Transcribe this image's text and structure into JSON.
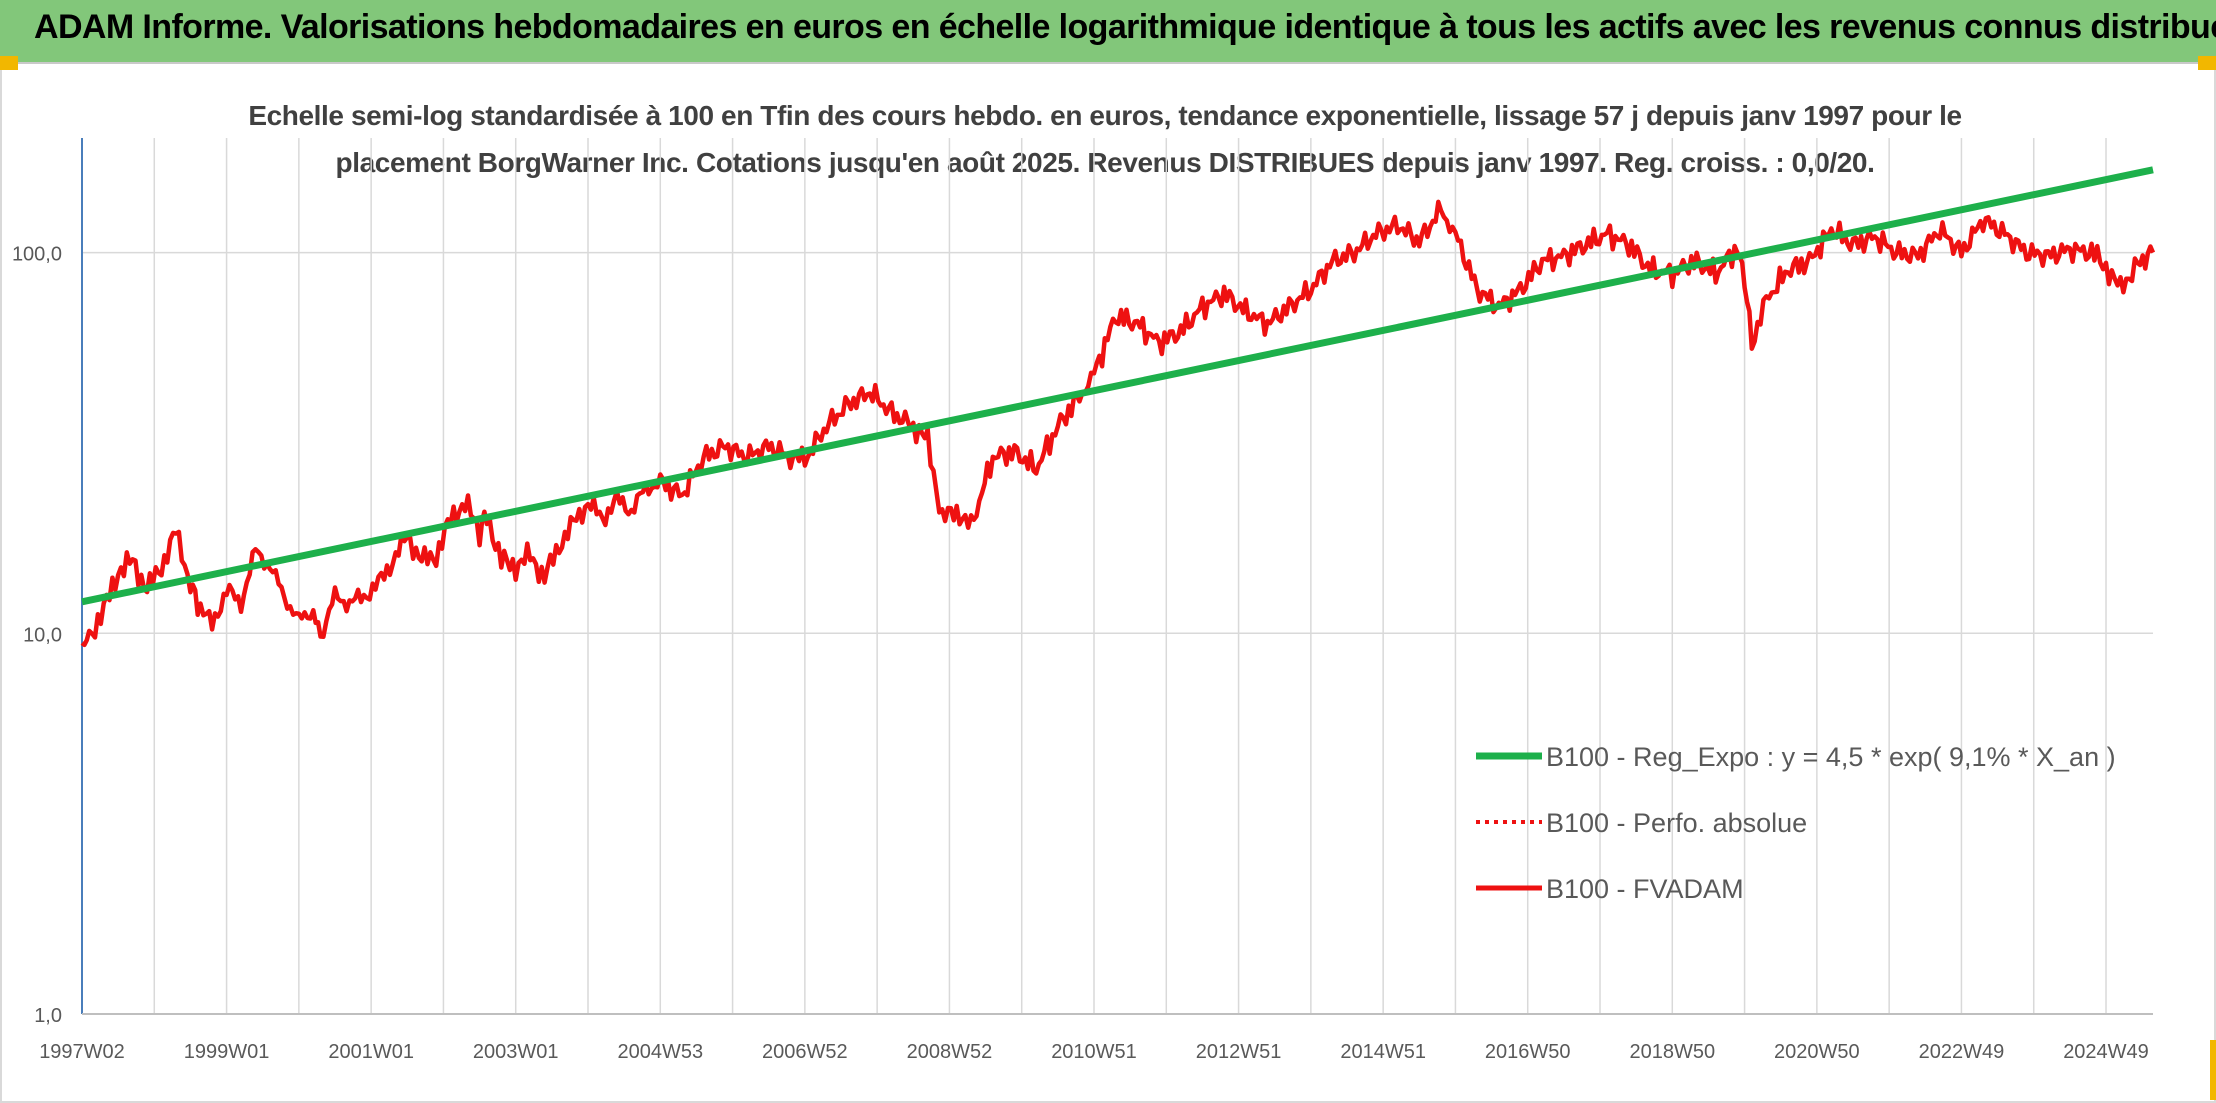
{
  "header": {
    "title": "ADAM Informe. Valorisations hebdomadaires en euros en échelle logarithmique identique à tous les actifs avec les revenus connus distribués"
  },
  "colors": {
    "header_bg": "#82c77a",
    "trend": "#1db04b",
    "fvadam": "#ee1111",
    "perfo": "#ee1111",
    "grid": "#d9d9d9",
    "axis": "#4a7ebb"
  },
  "chart_data": {
    "type": "line",
    "title_line1": "Echelle semi-log standardisée à 100 en Tfin des cours hebdo. en euros, tendance exponentielle, lissage 57 j depuis janv 1997 pour le",
    "title_line2": "placement BorgWarner Inc. Cotations jusqu'en août 2025. Revenus DISTRIBUES depuis janv 1997. Reg. croiss. : 0,0/20.",
    "y_scale": "log",
    "ylim": [
      1,
      200
    ],
    "y_ticks": [
      1,
      10,
      100
    ],
    "y_tick_labels": [
      "1,0",
      "10,0",
      "100,0"
    ],
    "xlim": [
      1997.0,
      2025.65
    ],
    "x_tick_labels": [
      "1997W02",
      "1999W01",
      "2001W01",
      "2003W01",
      "2004W53",
      "2006W52",
      "2008W52",
      "2010W51",
      "2012W51",
      "2014W51",
      "2016W50",
      "2018W50",
      "2020W50",
      "2022W49",
      "2024W49"
    ],
    "x_tick_positions": [
      1997.0,
      1999.0,
      2001.0,
      2003.0,
      2005.0,
      2007.0,
      2009.0,
      2011.0,
      2013.0,
      2015.0,
      2017.0,
      2019.0,
      2021.0,
      2023.0,
      2025.0
    ],
    "grid": true,
    "legend_position": "bottom-right",
    "series": [
      {
        "name": "B100 - Reg_Expo : y = 4,5 * exp( 9,1% *  X_an )",
        "style": "solid-thick",
        "color": "#1db04b",
        "x": [
          1997.0,
          2025.65
        ],
        "y": [
          12.1,
          165
        ]
      },
      {
        "name": "B100 - Perfo. absolue",
        "style": "dotted",
        "color": "#ee1111",
        "x": [],
        "y": []
      },
      {
        "name": "B100 - FVADAM",
        "style": "solid",
        "color": "#ee1111",
        "x": [
          1997.0,
          1997.1,
          1997.3,
          1997.5,
          1997.7,
          1997.9,
          1998.1,
          1998.3,
          1998.5,
          1998.6,
          1998.8,
          1999.0,
          1999.2,
          1999.4,
          1999.6,
          1999.8,
          2000.0,
          2000.2,
          2000.3,
          2000.5,
          2000.7,
          2000.9,
          2001.1,
          2001.3,
          2001.5,
          2001.7,
          2001.9,
          2002.1,
          2002.3,
          2002.5,
          2002.6,
          2002.8,
          2003.0,
          2003.2,
          2003.4,
          2003.6,
          2003.8,
          2004.0,
          2004.2,
          2004.4,
          2004.6,
          2004.8,
          2005.0,
          2005.3,
          2005.6,
          2005.9,
          2006.2,
          2006.5,
          2006.8,
          2007.0,
          2007.3,
          2007.6,
          2007.9,
          2008.2,
          2008.5,
          2008.7,
          2008.9,
          2009.1,
          2009.3,
          2009.6,
          2009.9,
          2010.2,
          2010.5,
          2010.8,
          2011.0,
          2011.3,
          2011.6,
          2011.9,
          2012.2,
          2012.5,
          2012.8,
          2013.1,
          2013.4,
          2013.7,
          2014.0,
          2014.3,
          2014.6,
          2014.9,
          2015.2,
          2015.5,
          2015.8,
          2016.0,
          2016.3,
          2016.6,
          2016.9,
          2017.2,
          2017.5,
          2017.8,
          2018.1,
          2018.4,
          2018.7,
          2019.0,
          2019.3,
          2019.6,
          2019.9,
          2020.0,
          2020.1,
          2020.3,
          2020.6,
          2020.9,
          2021.2,
          2021.5,
          2021.8,
          2022.1,
          2022.4,
          2022.7,
          2023.0,
          2023.3,
          2023.6,
          2023.9,
          2024.2,
          2024.5,
          2024.8,
          2025.0,
          2025.2,
          2025.4,
          2025.65
        ],
        "y": [
          9.3,
          9.8,
          11.5,
          14.5,
          15.5,
          13.0,
          15.0,
          18.5,
          13.5,
          12.0,
          10.5,
          13.0,
          12.0,
          16.5,
          15.0,
          12.5,
          10.8,
          11.5,
          9.8,
          12.5,
          12.0,
          12.5,
          13.5,
          15.5,
          18.0,
          15.5,
          16.0,
          20.0,
          22.0,
          18.5,
          20.5,
          15.5,
          15.0,
          16.0,
          14.0,
          17.0,
          19.5,
          22.0,
          20.0,
          22.5,
          21.0,
          24.0,
          25.0,
          23.0,
          29.0,
          31.0,
          29.0,
          31.0,
          29.0,
          28.5,
          35.0,
          40.0,
          43.0,
          38.0,
          35.0,
          32.0,
          20.0,
          21.0,
          19.0,
          29.0,
          30.0,
          27.0,
          35.0,
          42.0,
          48.0,
          68.0,
          65.0,
          58.0,
          62.0,
          72.0,
          78.0,
          70.0,
          65.0,
          72.0,
          80.0,
          95.0,
          100.0,
          112.0,
          118.0,
          107.0,
          130.0,
          112.0,
          80.0,
          72.0,
          80.0,
          95.0,
          98.0,
          105.0,
          112.0,
          105.0,
          90.0,
          88.0,
          95.0,
          88.0,
          103.0,
          85.0,
          58.0,
          75.0,
          90.0,
          95.0,
          115.0,
          105.0,
          110.0,
          100.0,
          98.0,
          115.0,
          100.0,
          122.0,
          112.0,
          100.0,
          98.0,
          102.0,
          100.0,
          92.0,
          80.0,
          92.0,
          100.0
        ]
      }
    ]
  }
}
